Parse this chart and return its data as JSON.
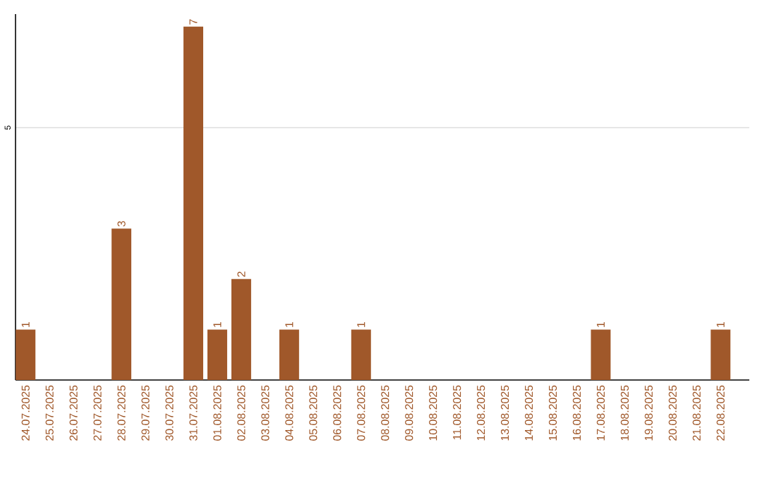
{
  "chart_data": {
    "type": "bar",
    "categories": [
      "24.07.2025",
      "25.07.2025",
      "26.07.2025",
      "27.07.2025",
      "28.07.2025",
      "29.07.2025",
      "30.07.2025",
      "31.07.2025",
      "01.08.2025",
      "02.08.2025",
      "03.08.2025",
      "04.08.2025",
      "05.08.2025",
      "06.08.2025",
      "07.08.2025",
      "08.08.2025",
      "09.08.2025",
      "10.08.2025",
      "11.08.2025",
      "12.08.2025",
      "13.08.2025",
      "14.08.2025",
      "15.08.2025",
      "16.08.2025",
      "17.08.2025",
      "18.08.2025",
      "19.08.2025",
      "20.08.2025",
      "21.08.2025",
      "22.08.2025"
    ],
    "values": [
      1,
      0,
      0,
      0,
      3,
      0,
      0,
      7,
      1,
      2,
      0,
      1,
      0,
      0,
      1,
      0,
      0,
      0,
      0,
      0,
      0,
      0,
      0,
      0,
      1,
      0,
      0,
      0,
      0,
      1
    ],
    "value_labels": [
      "1",
      null,
      null,
      null,
      "3",
      null,
      null,
      "7",
      "1",
      "2",
      null,
      "1",
      null,
      null,
      "1",
      null,
      null,
      null,
      null,
      null,
      null,
      null,
      null,
      null,
      "1",
      null,
      null,
      null,
      null,
      "1"
    ],
    "color": "#a0582a",
    "ylim": [
      0,
      7.25
    ],
    "yticks": [
      5
    ],
    "grid": "y"
  }
}
